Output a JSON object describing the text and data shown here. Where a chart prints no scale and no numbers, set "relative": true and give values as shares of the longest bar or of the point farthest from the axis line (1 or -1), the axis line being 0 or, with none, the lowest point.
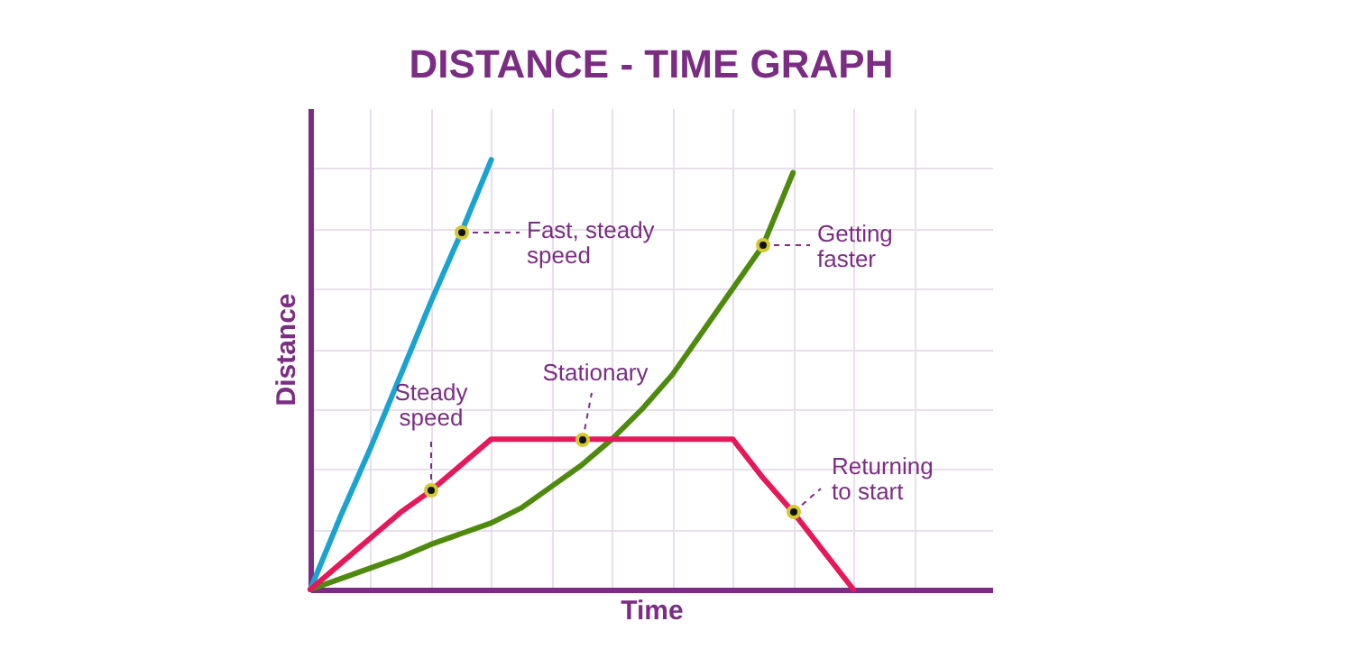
{
  "chart_data": {
    "type": "line",
    "title": "DISTANCE - TIME GRAPH",
    "xlabel": "Time",
    "ylabel": "Distance",
    "relative": true,
    "grid": true,
    "categories": [
      null,
      null,
      null,
      null,
      null,
      null,
      null,
      null,
      null,
      null,
      null,
      null,
      null,
      null,
      null,
      null,
      null,
      null,
      null,
      null,
      null,
      null,
      null
    ],
    "series": [
      {
        "color": "#1aa3d1",
        "values": [
          0,
          0.17,
          0.33,
          0.5,
          0.67,
          0.83,
          1,
          null,
          null,
          null,
          null,
          null,
          null,
          null,
          null,
          null,
          null,
          null,
          null,
          null,
          null,
          null,
          null
        ]
      },
      {
        "color": "#4e8a0e",
        "values": [
          0,
          0.025,
          0.05,
          0.075,
          0.105,
          0.13,
          0.155,
          0.19,
          0.24,
          0.29,
          0.35,
          0.42,
          0.5,
          0.6,
          0.7,
          0.8,
          0.97,
          null,
          null,
          null,
          null,
          null,
          null
        ]
      },
      {
        "color": "#e5195a",
        "values": [
          0,
          0.06,
          0.12,
          0.18,
          0.23,
          0.29,
          0.35,
          0.35,
          0.35,
          0.35,
          0.35,
          0.35,
          0.35,
          0.35,
          0.35,
          0.26,
          0.18,
          0.09,
          0,
          null,
          null,
          null,
          null
        ]
      }
    ],
    "annotations": [
      "Fast, steady\nspeed",
      "Getting\nfaster",
      "Steady\nspeed",
      "Stationary",
      "Returning\nto start"
    ]
  }
}
